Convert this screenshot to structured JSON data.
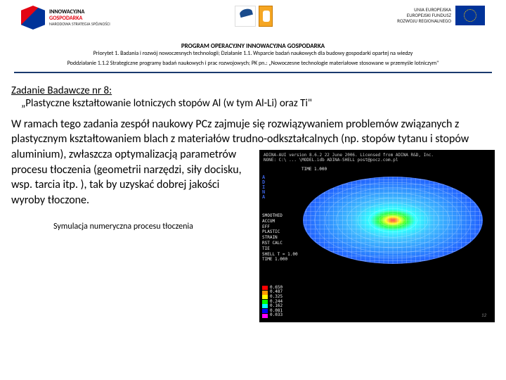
{
  "header": {
    "logo_left": {
      "line1": "INNOWACYJNA",
      "line2": "GOSPODARKA",
      "line3": "NARODOWA STRATEGIA SPÓJNOŚCI"
    },
    "logo_right": {
      "line1": "UNIA EUROPEJSKA",
      "line2": "EUROPEJSKI FUNDUSZ",
      "line3": "ROZWOJU REGIONALNEGO"
    }
  },
  "program": {
    "title": "PROGRAM OPERACYJNY INNOWACYJNA GOSPODARKA",
    "sub1": "Priorytet 1. Badania i rozwój nowoczesnych technologii; Działanie 1.1. Wsparcie badań naukowych dla budowy gospodarki opartej na wiedzy",
    "sub2": "Poddziałanie 1.1.2 Strategiczne programy badań naukowych i prac rozwojowych; PK pn.: „Nowoczesne technologie materiałowe stosowane w przemyśle lotniczym\""
  },
  "task": {
    "title": "Zadanie Badawcze nr 8:",
    "subtitle": "„Plastyczne kształtowanie lotniczych stopów Al (w tym Al-Li) oraz Ti\""
  },
  "body": {
    "p1a": "W ramach tego zadania zespół naukowy PCz zajmuje się rozwiązywaniem problemów związanych z plastycznym  kształtowaniem blach z materiałów trudno-odkształcalnych (np. stopów tytanu i stopów aluminium), zwłaszcza",
    "p1b": "optymalizacją parametrów  procesu tłoczenia (geometrii narzędzi, siły docisku, wsp. tarcia itp. ), tak by uzyskać dobrej jakości wyroby tłoczone."
  },
  "simulation": {
    "header_line1": "ADINA-AUI version 8.6.2 22 June 2006. Licensed from ADINA R&D, Inc.",
    "header_line2": "NONE: C:\\ ... \\MODEL.idb  ADINA-SHELL post@pocz.com.pl",
    "brand": "ADINA",
    "time_label": "TIME 1.000",
    "left_block": [
      "SMOOTHED",
      "ACCUM",
      "EFF",
      "PLASTIC",
      "STRAIN",
      "RST CALC",
      "TIE",
      "SHELL T = 1.00",
      "TIME 1.000"
    ],
    "legend": [
      {
        "color": "#ff0000",
        "label": "0.650"
      },
      {
        "color": "#ff9900",
        "label": "0.487"
      },
      {
        "color": "#ffff00",
        "label": "0.325"
      },
      {
        "color": "#00ff00",
        "label": "0.244"
      },
      {
        "color": "#00ffff",
        "label": "0.162"
      },
      {
        "color": "#0000ff",
        "label": "0.081"
      },
      {
        "color": "#ff00ff",
        "label": "0.033"
      }
    ],
    "mesh_colors": {
      "outer": "#2060ff",
      "mid": "#40c0ff",
      "center": "#ff2020",
      "grid": "#ffffff"
    },
    "page": "12"
  },
  "caption": "Symulacja numeryczna procesu tłoczenia"
}
